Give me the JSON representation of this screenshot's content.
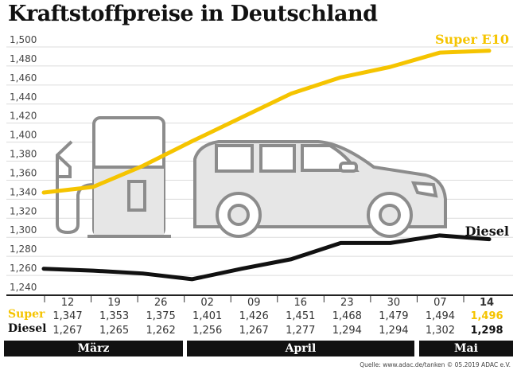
{
  "chart_data": {
    "type": "line",
    "title": "Kraftstoffpreise in Deutschland",
    "categories": [
      "12",
      "19",
      "26",
      "02",
      "09",
      "16",
      "23",
      "30",
      "07",
      "14"
    ],
    "months": [
      {
        "label": "März",
        "span": 3
      },
      {
        "label": "April",
        "span": 5
      },
      {
        "label": "Mai",
        "span": 2
      }
    ],
    "series": [
      {
        "name": "Super E10",
        "table_label": "Super",
        "color": "#f5c400",
        "values": [
          1.347,
          1.353,
          1.375,
          1.401,
          1.426,
          1.451,
          1.468,
          1.479,
          1.494,
          1.496
        ],
        "labels": [
          "1,347",
          "1,353",
          "1,375",
          "1,401",
          "1,426",
          "1,451",
          "1,468",
          "1,479",
          "1,494",
          "1,496"
        ]
      },
      {
        "name": "Diesel",
        "table_label": "Diesel",
        "color": "#111111",
        "values": [
          1.267,
          1.265,
          1.262,
          1.256,
          1.267,
          1.277,
          1.294,
          1.294,
          1.302,
          1.298
        ],
        "labels": [
          "1,267",
          "1,265",
          "1,262",
          "1,256",
          "1,267",
          "1,277",
          "1,294",
          "1,294",
          "1,302",
          "1,298"
        ]
      }
    ],
    "ylim": [
      1.24,
      1.5
    ],
    "yticks": [
      "1,500",
      "1,480",
      "1,460",
      "1,440",
      "1,420",
      "1,400",
      "1,380",
      "1,360",
      "1,340",
      "1,320",
      "1,300",
      "1,280",
      "1,260",
      "1,240"
    ],
    "grid": true,
    "xlabel": "",
    "ylabel": ""
  },
  "source": "Quelle: www.adac.de/tanken   © 05.2019  ADAC e.V."
}
